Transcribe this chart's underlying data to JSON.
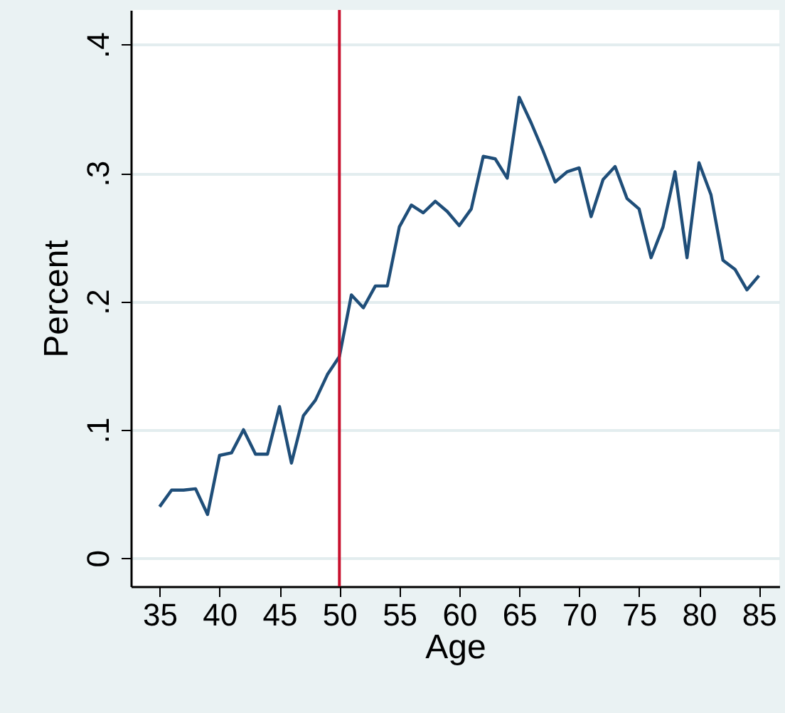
{
  "chart_data": {
    "type": "line",
    "xlabel": "Age",
    "ylabel": "Percent",
    "x": [
      35,
      36,
      37,
      38,
      39,
      40,
      41,
      42,
      43,
      44,
      45,
      46,
      47,
      48,
      49,
      50,
      51,
      52,
      53,
      54,
      55,
      56,
      57,
      58,
      59,
      60,
      61,
      62,
      63,
      64,
      65,
      66,
      67,
      68,
      69,
      70,
      71,
      72,
      73,
      74,
      75,
      76,
      77,
      78,
      79,
      80,
      81,
      82,
      83,
      84,
      85
    ],
    "series": [
      {
        "color": "#1f4e79",
        "values": [
          0.04,
          0.053,
          0.053,
          0.054,
          0.034,
          0.08,
          0.082,
          0.1,
          0.081,
          0.081,
          0.118,
          0.074,
          0.111,
          0.123,
          0.143,
          0.157,
          0.205,
          0.195,
          0.212,
          0.212,
          0.258,
          0.275,
          0.269,
          0.278,
          0.27,
          0.259,
          0.272,
          0.313,
          0.311,
          0.296,
          0.359,
          0.339,
          0.317,
          0.293,
          0.301,
          0.304,
          0.266,
          0.295,
          0.305,
          0.28,
          0.272,
          0.234,
          0.258,
          0.301,
          0.234,
          0.308,
          0.283,
          0.232,
          0.225,
          0.209,
          0.22
        ]
      }
    ],
    "xlim": [
      32.6,
      86.7
    ],
    "xticks": [
      35,
      40,
      45,
      50,
      55,
      60,
      65,
      70,
      75,
      80,
      85
    ],
    "ylim": [
      -0.022,
      0.427
    ],
    "yticks": [
      {
        "value": 0,
        "label": "0"
      },
      {
        "value": 0.1,
        "label": ".1"
      },
      {
        "value": 0.2,
        "label": ".2"
      },
      {
        "value": 0.3,
        "label": ".3"
      },
      {
        "value": 0.4,
        "label": ".4"
      }
    ],
    "grid": "y",
    "ref_lines": [
      {
        "axis": "x",
        "value": 50,
        "color": "#c8102e"
      }
    ]
  }
}
